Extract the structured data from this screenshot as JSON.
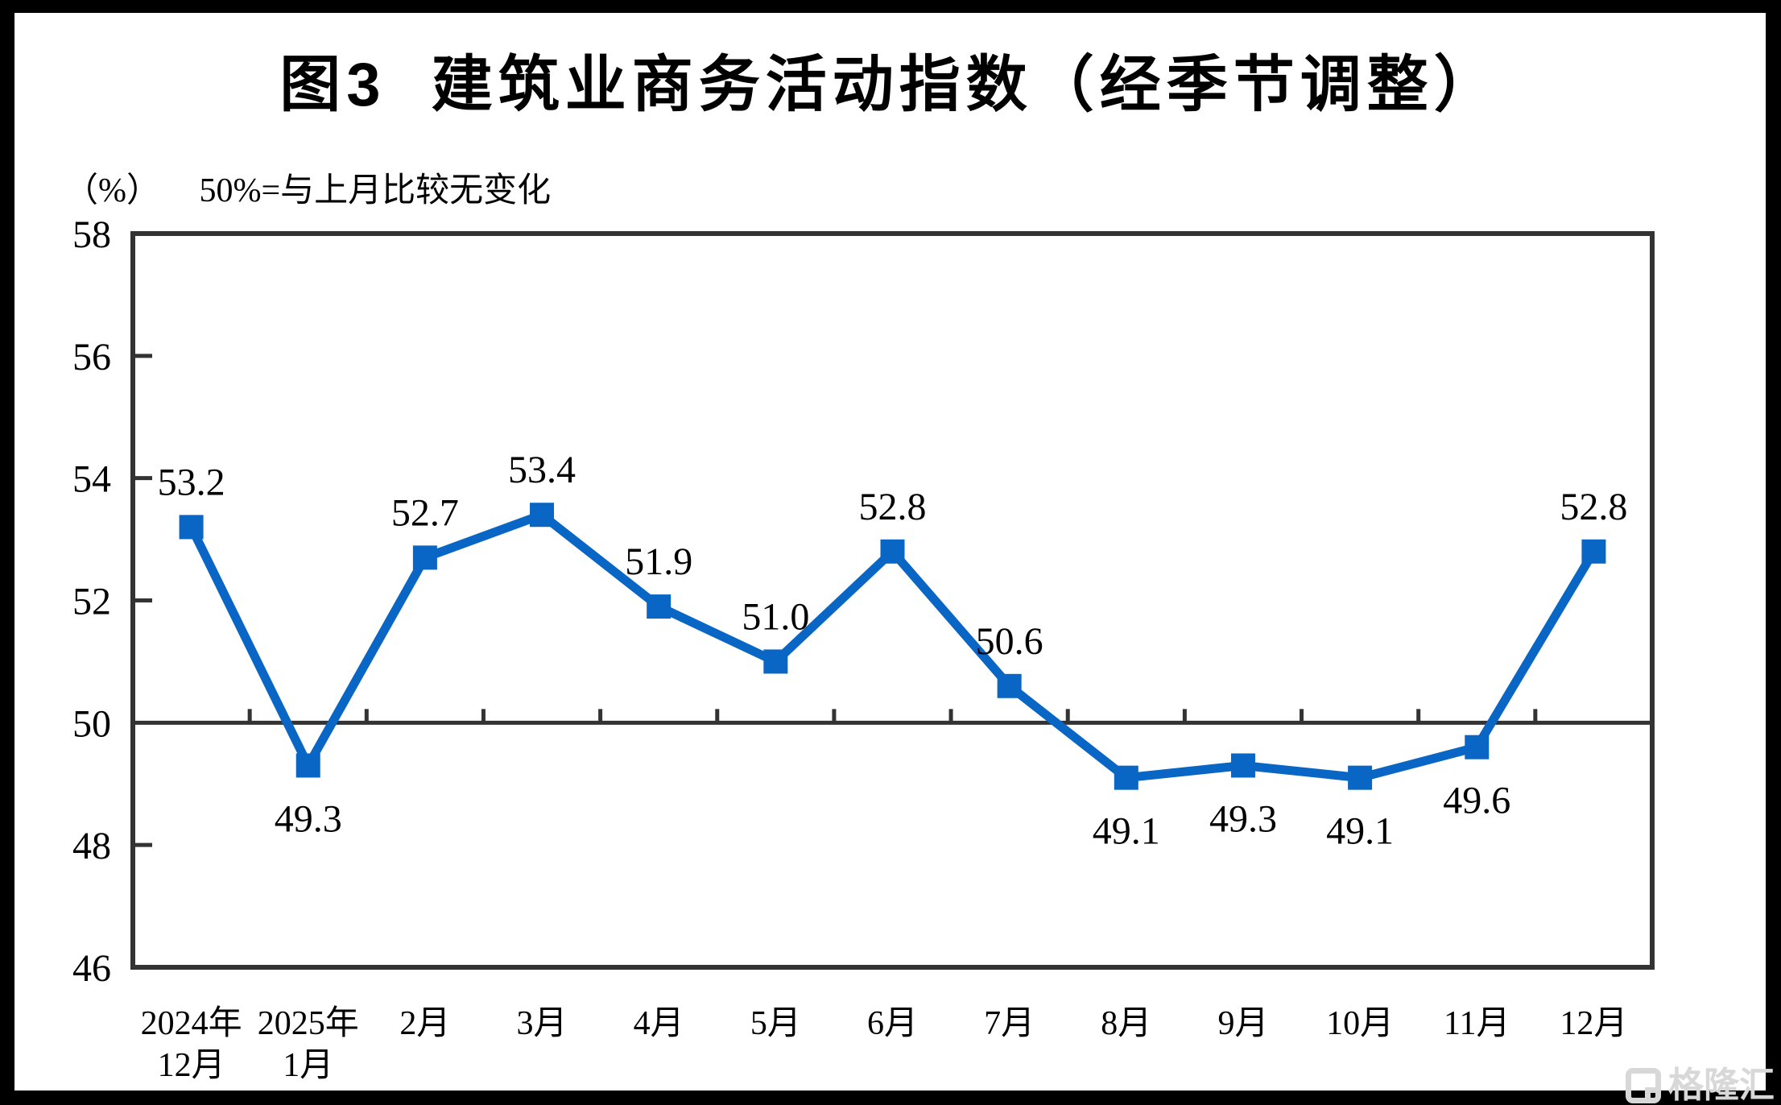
{
  "page": {
    "title": "图3  建筑业商务活动指数（经季节调整）",
    "unit_label": "（%）",
    "reference_note": "50%=与上月比较无变化",
    "watermark": "格隆汇"
  },
  "colors": {
    "series_blue": "#0a66c4",
    "axis_dark": "#333333",
    "text_black": "#000000",
    "watermark_gray": "#d8d8d8",
    "frame_black": "#000000",
    "canvas_white": "#ffffff"
  },
  "chart_data": {
    "type": "line",
    "title": "图3 建筑业商务活动指数（经季节调整）",
    "unit": "%",
    "subtitle": "（%） 50%=与上月比较无变化",
    "categories": [
      [
        "2024年",
        "12月"
      ],
      [
        "2025年",
        "1月"
      ],
      [
        "2月"
      ],
      [
        "3月"
      ],
      [
        "4月"
      ],
      [
        "5月"
      ],
      [
        "6月"
      ],
      [
        "7月"
      ],
      [
        "8月"
      ],
      [
        "9月"
      ],
      [
        "10月"
      ],
      [
        "11月"
      ],
      [
        "12月"
      ]
    ],
    "series": [
      {
        "name": "建筑业商务活动指数（经季节调整）",
        "values": [
          53.2,
          49.3,
          52.7,
          53.4,
          51.9,
          51.0,
          52.8,
          50.6,
          49.1,
          49.3,
          49.1,
          49.6,
          52.8
        ],
        "labels": [
          "53.2",
          "49.3",
          "52.7",
          "53.4",
          "51.9",
          "51.0",
          "52.8",
          "50.6",
          "49.1",
          "49.3",
          "49.1",
          "49.6",
          "52.8"
        ],
        "label_position": [
          "above",
          "below",
          "above",
          "above",
          "above",
          "above",
          "above",
          "above",
          "below",
          "below",
          "below",
          "below",
          "above"
        ]
      }
    ],
    "ylim": [
      46,
      58
    ],
    "yticks": [
      58,
      56,
      54,
      52,
      50,
      48,
      46
    ],
    "ytick_step": 2,
    "reference_line": 50,
    "marker": "square",
    "line_color": "#0a66c4",
    "legend": "none",
    "grid": false
  }
}
